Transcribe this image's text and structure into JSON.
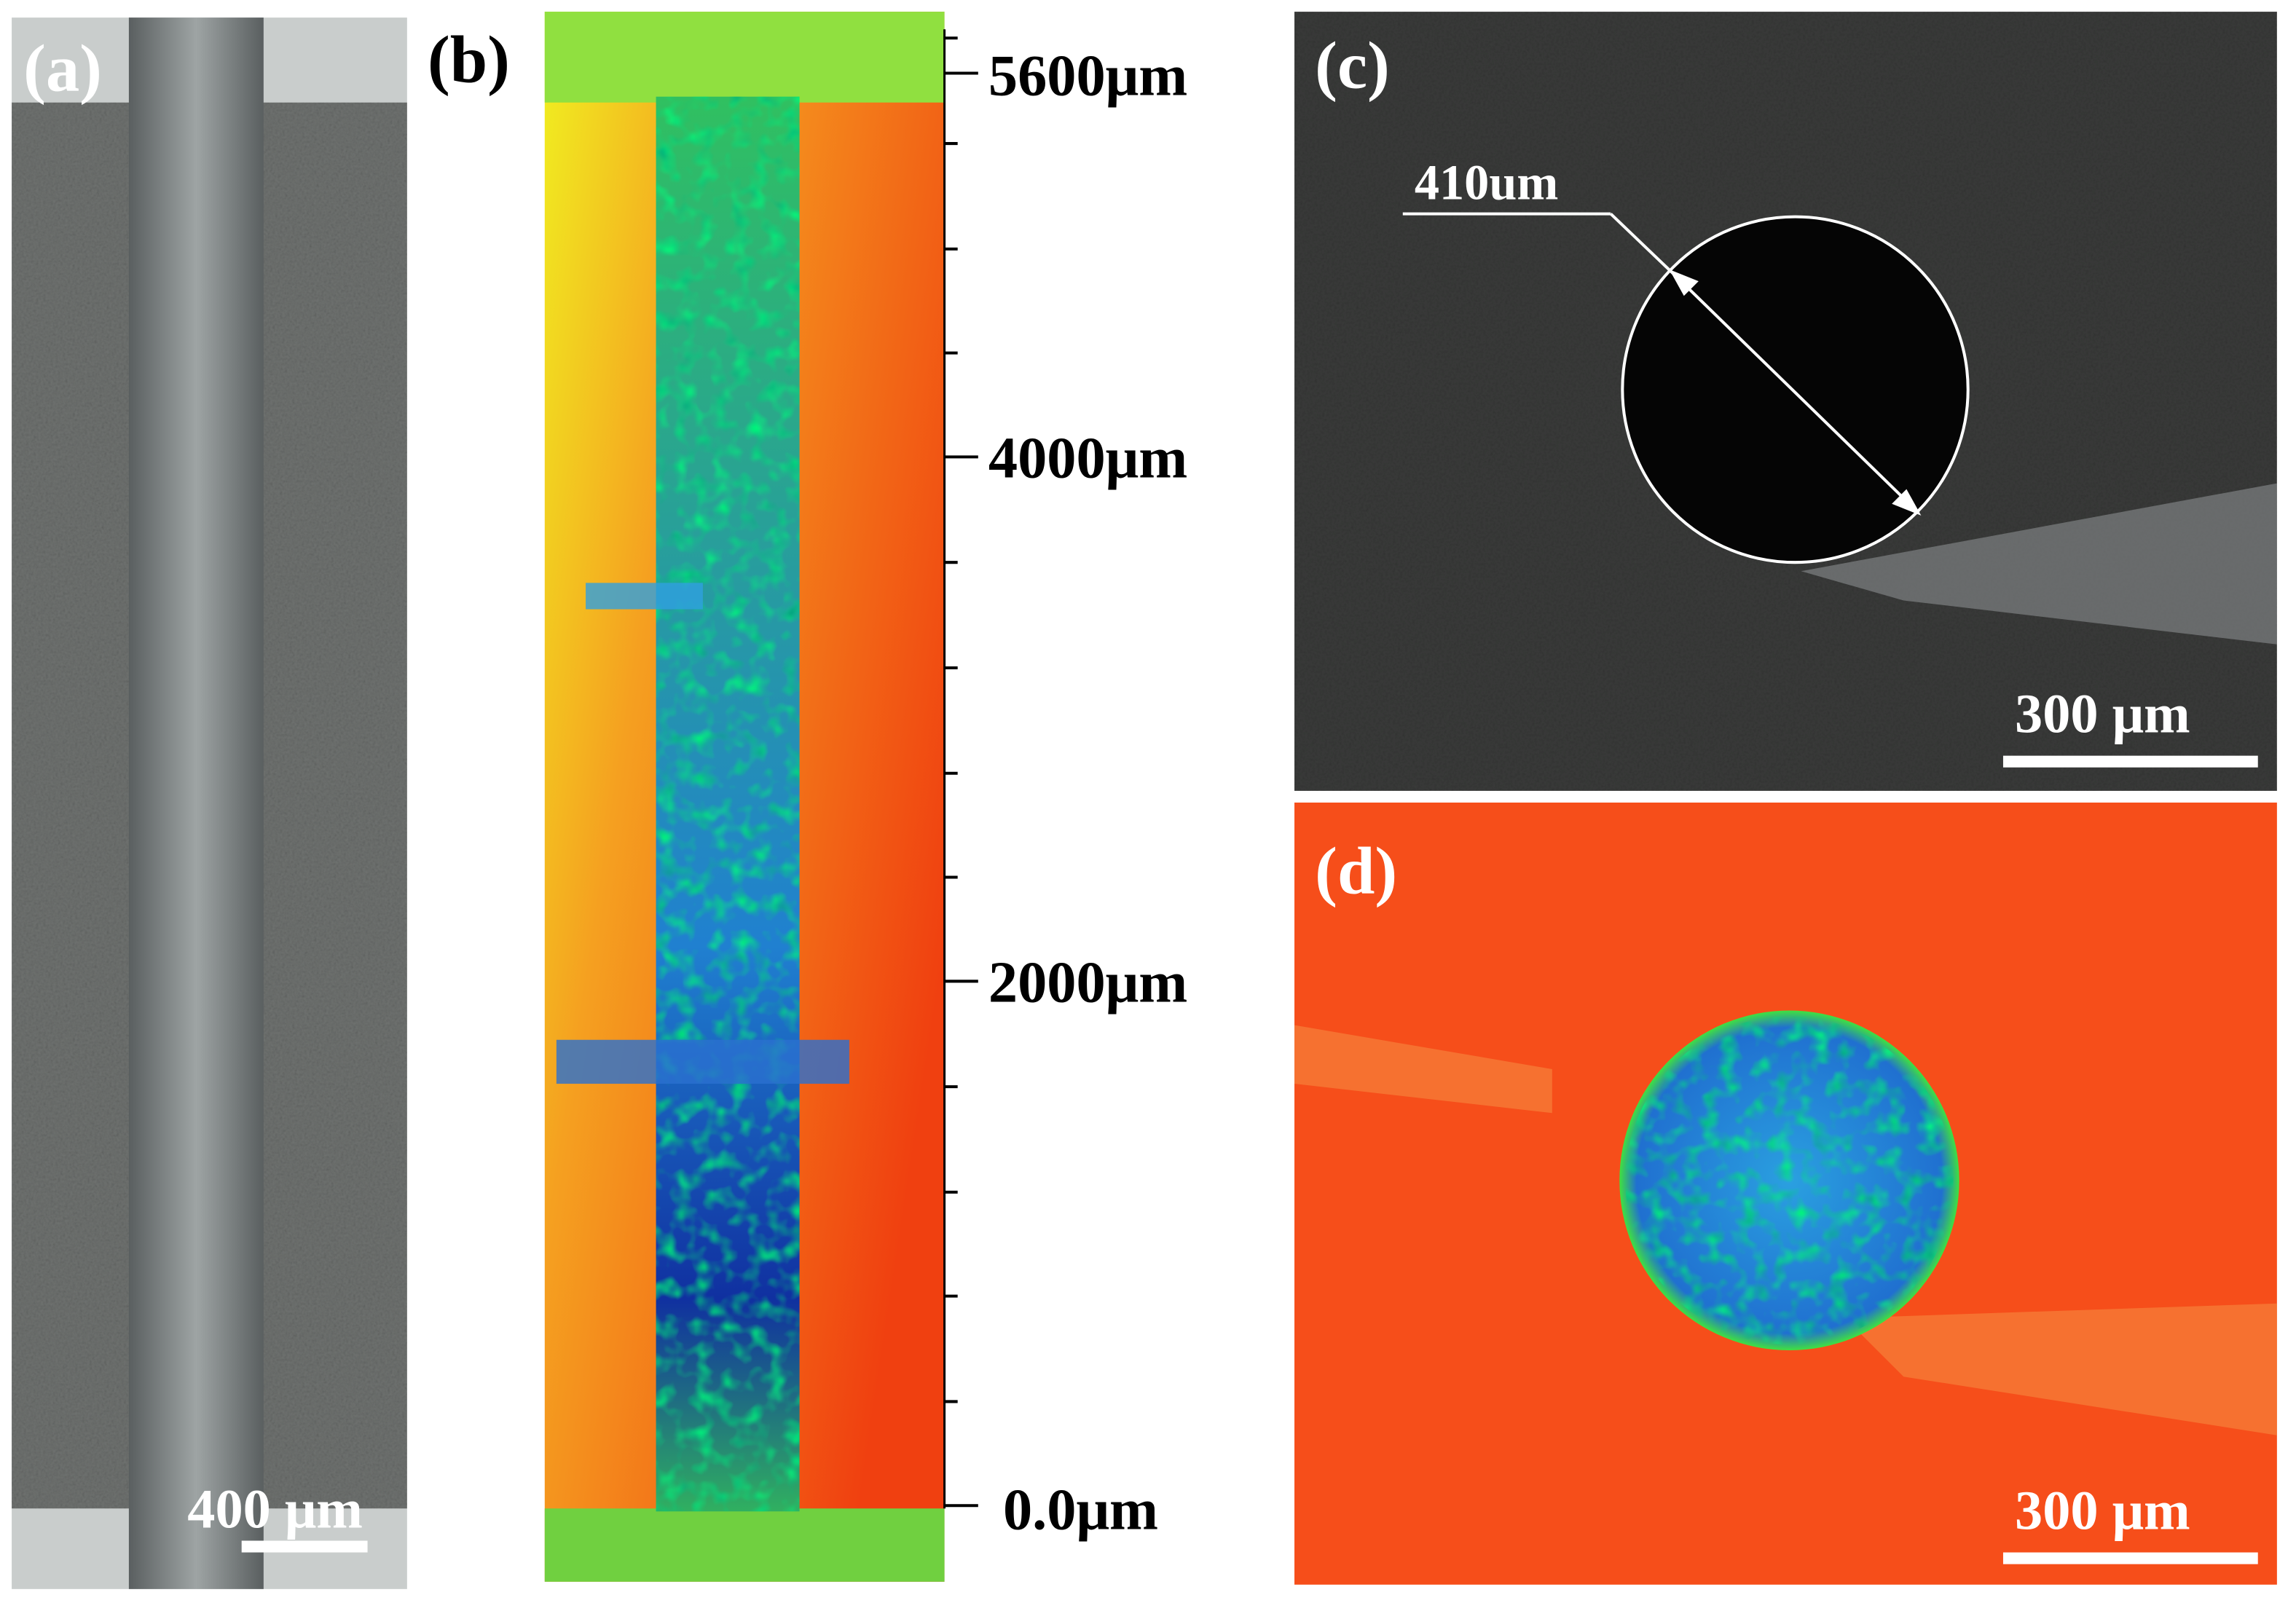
{
  "panels": [
    {
      "label": "(a)",
      "scale_bar": "400 μm"
    },
    {
      "label": "(b)",
      "axis_labels": [
        "5600μm",
        "4000μm",
        "2000μm",
        "0.0μm"
      ]
    },
    {
      "label": "(c)",
      "annotation": "410um",
      "scale_bar": "300 μm"
    },
    {
      "label": "(d)",
      "scale_bar": "300 μm"
    }
  ]
}
